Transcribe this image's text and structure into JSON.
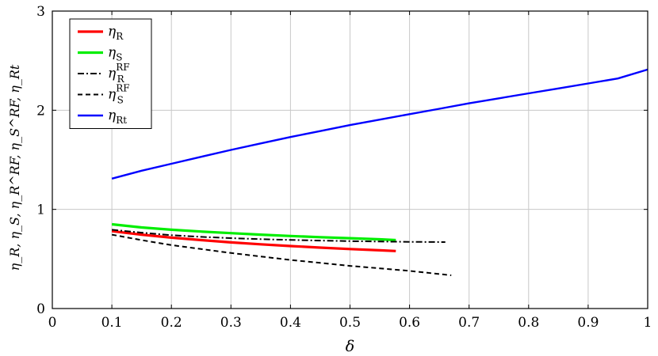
{
  "chart_data": {
    "type": "line",
    "xlabel": "δ",
    "ylabel": "η_R, η_S, η_R^RF, η_S^RF, η_Rt",
    "xlim": [
      0,
      1
    ],
    "ylim": [
      0,
      3
    ],
    "xticks": [
      0,
      0.1,
      0.2,
      0.3,
      0.4,
      0.5,
      0.6,
      0.7,
      0.8,
      0.9,
      1
    ],
    "xtick_labels": [
      "0",
      "0.1",
      "0.2",
      "0.3",
      "0.4",
      "0.5",
      "0.6",
      "0.7",
      "0.8",
      "0.9",
      "1"
    ],
    "yticks": [
      0,
      1,
      2,
      3
    ],
    "ytick_labels": [
      "0",
      "1",
      "2",
      "3"
    ],
    "grid": true,
    "legend_position": "top-left",
    "series": [
      {
        "name": "η_R",
        "legend_main": "η",
        "legend_sub": "R",
        "legend_sup": "",
        "color": "#ff0000",
        "style": "solid",
        "width": 3.2,
        "points": [
          [
            0.1,
            0.78
          ],
          [
            0.15,
            0.745
          ],
          [
            0.2,
            0.715
          ],
          [
            0.25,
            0.69
          ],
          [
            0.3,
            0.667
          ],
          [
            0.35,
            0.648
          ],
          [
            0.4,
            0.63
          ],
          [
            0.45,
            0.614
          ],
          [
            0.5,
            0.6
          ],
          [
            0.55,
            0.587
          ],
          [
            0.577,
            0.58
          ]
        ]
      },
      {
        "name": "η_S",
        "legend_main": "η",
        "legend_sub": "S",
        "legend_sup": "",
        "color": "#00ee00",
        "style": "solid",
        "width": 3.2,
        "points": [
          [
            0.1,
            0.85
          ],
          [
            0.15,
            0.818
          ],
          [
            0.2,
            0.795
          ],
          [
            0.25,
            0.776
          ],
          [
            0.3,
            0.76
          ],
          [
            0.35,
            0.745
          ],
          [
            0.4,
            0.732
          ],
          [
            0.45,
            0.72
          ],
          [
            0.5,
            0.709
          ],
          [
            0.55,
            0.698
          ],
          [
            0.577,
            0.69
          ]
        ]
      },
      {
        "name": "η_R^RF",
        "legend_main": "η",
        "legend_sub": "R",
        "legend_sup": "RF",
        "color": "#000000",
        "style": "dashdot",
        "width": 2,
        "points": [
          [
            0.1,
            0.795
          ],
          [
            0.15,
            0.765
          ],
          [
            0.2,
            0.74
          ],
          [
            0.25,
            0.723
          ],
          [
            0.3,
            0.71
          ],
          [
            0.35,
            0.7
          ],
          [
            0.4,
            0.692
          ],
          [
            0.45,
            0.685
          ],
          [
            0.5,
            0.68
          ],
          [
            0.55,
            0.676
          ],
          [
            0.6,
            0.673
          ],
          [
            0.66,
            0.67
          ]
        ]
      },
      {
        "name": "η_S^RF",
        "legend_main": "η",
        "legend_sub": "S",
        "legend_sup": "RF",
        "color": "#000000",
        "style": "dashed",
        "width": 2,
        "points": [
          [
            0.1,
            0.745
          ],
          [
            0.15,
            0.69
          ],
          [
            0.2,
            0.64
          ],
          [
            0.25,
            0.6
          ],
          [
            0.3,
            0.56
          ],
          [
            0.35,
            0.525
          ],
          [
            0.4,
            0.49
          ],
          [
            0.45,
            0.46
          ],
          [
            0.5,
            0.43
          ],
          [
            0.55,
            0.405
          ],
          [
            0.6,
            0.38
          ],
          [
            0.67,
            0.335
          ]
        ]
      },
      {
        "name": "η_Rt",
        "legend_main": "η",
        "legend_sub": "Rt",
        "legend_sup": "",
        "color": "#0000ff",
        "style": "solid",
        "width": 2.4,
        "points": [
          [
            0.1,
            1.31
          ],
          [
            0.15,
            1.39
          ],
          [
            0.2,
            1.46
          ],
          [
            0.25,
            1.53
          ],
          [
            0.3,
            1.6
          ],
          [
            0.35,
            1.665
          ],
          [
            0.4,
            1.73
          ],
          [
            0.45,
            1.79
          ],
          [
            0.5,
            1.85
          ],
          [
            0.55,
            1.905
          ],
          [
            0.6,
            1.96
          ],
          [
            0.65,
            2.015
          ],
          [
            0.7,
            2.07
          ],
          [
            0.75,
            2.12
          ],
          [
            0.8,
            2.17
          ],
          [
            0.85,
            2.22
          ],
          [
            0.9,
            2.27
          ],
          [
            0.95,
            2.32
          ],
          [
            1.0,
            2.41
          ]
        ]
      }
    ]
  }
}
